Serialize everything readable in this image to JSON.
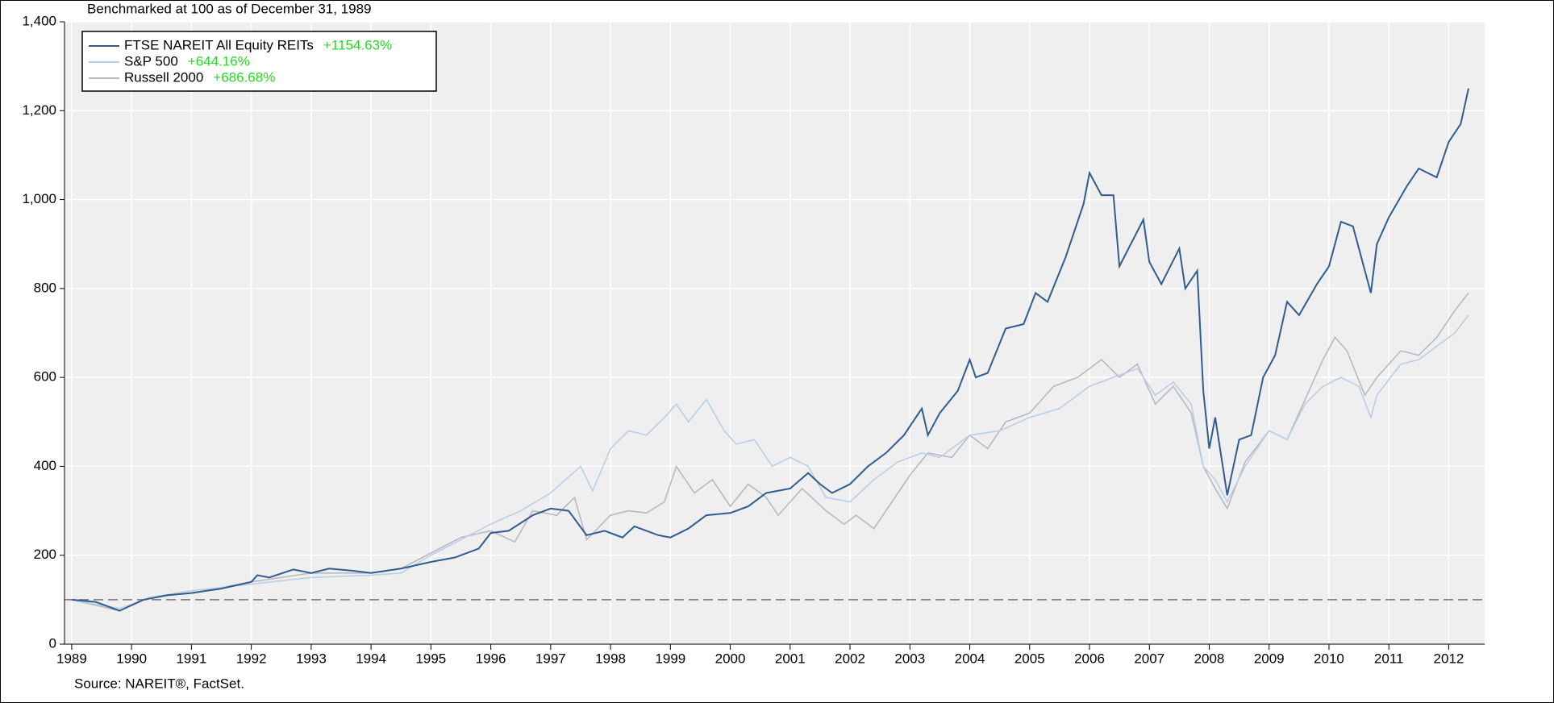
{
  "chart_data": {
    "type": "line",
    "subtitle": "Benchmarked at 100 as of December 31, 1989",
    "source": "Source: NAREIT®, FactSet.",
    "xlim": [
      1988.88,
      2012.6
    ],
    "xticks": [
      1989,
      1990,
      1991,
      1992,
      1993,
      1994,
      1995,
      1996,
      1997,
      1998,
      1999,
      2000,
      2001,
      2002,
      2003,
      2004,
      2005,
      2006,
      2007,
      2008,
      2009,
      2010,
      2011,
      2012
    ],
    "ylim": [
      0,
      1400
    ],
    "yticks": [
      0,
      200,
      400,
      600,
      800,
      {
        "value": 1000,
        "label": "1,000"
      },
      {
        "value": 1200,
        "label": "1,200"
      },
      {
        "value": 1400,
        "label": "1,400"
      }
    ],
    "grid": true,
    "reference_line": 100,
    "legend": "upper left",
    "series": [
      {
        "name": "FTSE NAREIT All Equity REITs",
        "change_label": "+1154.63%",
        "color": "#2f5d8f",
        "x": [
          1989.0,
          1989.4,
          1989.8,
          1990.2,
          1990.6,
          1991.0,
          1991.5,
          1992.0,
          1992.1,
          1992.3,
          1992.7,
          1993.0,
          1993.3,
          1993.7,
          1994.0,
          1994.5,
          1995.0,
          1995.4,
          1995.8,
          1996.0,
          1996.3,
          1996.7,
          1997.0,
          1997.3,
          1997.6,
          1997.9,
          1998.2,
          1998.4,
          1998.8,
          1999.0,
          1999.3,
          1999.6,
          2000.0,
          2000.3,
          2000.6,
          2001.0,
          2001.3,
          2001.5,
          2001.7,
          2002.0,
          2002.3,
          2002.6,
          2002.9,
          2003.2,
          2003.3,
          2003.5,
          2003.8,
          2004.0,
          2004.1,
          2004.3,
          2004.6,
          2004.9,
          2005.1,
          2005.3,
          2005.6,
          2005.9,
          2006.0,
          2006.2,
          2006.4,
          2006.5,
          2006.9,
          2007.0,
          2007.2,
          2007.5,
          2007.6,
          2007.8,
          2007.9,
          2008.0,
          2008.1,
          2008.3,
          2008.5,
          2008.7,
          2008.9,
          2009.1,
          2009.3,
          2009.5,
          2009.8,
          2010.0,
          2010.2,
          2010.4,
          2010.7,
          2010.8,
          2011.0,
          2011.3,
          2011.5,
          2011.8,
          2012.0,
          2012.2,
          2012.33
        ],
        "values": [
          100,
          95,
          75,
          100,
          110,
          115,
          125,
          140,
          155,
          150,
          168,
          160,
          170,
          165,
          160,
          170,
          185,
          195,
          215,
          250,
          255,
          290,
          305,
          300,
          245,
          255,
          240,
          265,
          245,
          240,
          260,
          290,
          295,
          310,
          340,
          350,
          385,
          360,
          340,
          360,
          400,
          430,
          470,
          530,
          470,
          520,
          570,
          640,
          600,
          610,
          710,
          720,
          790,
          770,
          870,
          990,
          1060,
          1010,
          1010,
          850,
          955,
          860,
          810,
          890,
          800,
          840,
          570,
          440,
          510,
          335,
          460,
          470,
          600,
          650,
          770,
          740,
          810,
          850,
          950,
          940,
          790,
          900,
          960,
          1030,
          1070,
          1050,
          1130,
          1170,
          1250
        ]
      },
      {
        "name": "S&P 500",
        "change_label": "+644.16%",
        "color": "#b8cfe6",
        "x": [
          1989.0,
          1989.8,
          1990.3,
          1991.0,
          1992.0,
          1993.0,
          1994.0,
          1994.5,
          1995.0,
          1995.5,
          1996.0,
          1996.5,
          1997.0,
          1997.5,
          1997.7,
          1998.0,
          1998.3,
          1998.6,
          1998.9,
          1999.1,
          1999.3,
          1999.6,
          1999.9,
          2000.1,
          2000.4,
          2000.7,
          2001.0,
          2001.3,
          2001.6,
          2002.0,
          2002.4,
          2002.8,
          2003.2,
          2003.5,
          2004.0,
          2004.5,
          2005.0,
          2005.5,
          2006.0,
          2006.4,
          2006.8,
          2007.1,
          2007.4,
          2007.7,
          2007.9,
          2008.1,
          2008.3,
          2008.6,
          2009.0,
          2009.3,
          2009.6,
          2009.9,
          2010.2,
          2010.5,
          2010.7,
          2010.8,
          2011.2,
          2011.5,
          2011.8,
          2012.1,
          2012.33
        ],
        "values": [
          100,
          80,
          105,
          120,
          135,
          150,
          155,
          160,
          200,
          235,
          270,
          300,
          340,
          400,
          345,
          440,
          480,
          470,
          510,
          540,
          500,
          550,
          480,
          450,
          460,
          400,
          420,
          400,
          330,
          320,
          370,
          410,
          430,
          420,
          470,
          480,
          510,
          530,
          580,
          600,
          620,
          560,
          590,
          540,
          400,
          370,
          320,
          400,
          480,
          460,
          540,
          580,
          600,
          580,
          510,
          560,
          630,
          640,
          670,
          700,
          740
        ]
      },
      {
        "name": "Russell 2000",
        "change_label": "+686.68%",
        "color": "#b8b8c0",
        "x": [
          1989.0,
          1989.8,
          1990.3,
          1991.0,
          1992.0,
          1993.0,
          1994.0,
          1994.5,
          1995.0,
          1995.5,
          1996.0,
          1996.4,
          1996.7,
          1997.1,
          1997.4,
          1997.6,
          1998.0,
          1998.3,
          1998.6,
          1998.9,
          1999.1,
          1999.4,
          1999.7,
          2000.0,
          2000.3,
          2000.6,
          2000.8,
          2001.2,
          2001.6,
          2001.9,
          2002.1,
          2002.4,
          2002.7,
          2003.0,
          2003.3,
          2003.7,
          2004.0,
          2004.3,
          2004.6,
          2005.0,
          2005.4,
          2005.8,
          2006.2,
          2006.5,
          2006.8,
          2007.1,
          2007.4,
          2007.7,
          2007.9,
          2008.1,
          2008.3,
          2008.6,
          2009.0,
          2009.3,
          2009.6,
          2009.9,
          2010.1,
          2010.3,
          2010.6,
          2010.8,
          2011.2,
          2011.5,
          2011.8,
          2012.1,
          2012.33
        ],
        "values": [
          100,
          75,
          105,
          115,
          140,
          160,
          160,
          170,
          205,
          240,
          255,
          230,
          300,
          290,
          330,
          235,
          290,
          300,
          295,
          320,
          400,
          340,
          370,
          310,
          360,
          330,
          290,
          350,
          300,
          270,
          290,
          260,
          320,
          380,
          430,
          420,
          470,
          440,
          500,
          520,
          580,
          600,
          640,
          600,
          630,
          540,
          580,
          520,
          400,
          350,
          305,
          410,
          480,
          460,
          550,
          640,
          690,
          660,
          560,
          600,
          660,
          650,
          690,
          750,
          790
        ]
      }
    ]
  }
}
